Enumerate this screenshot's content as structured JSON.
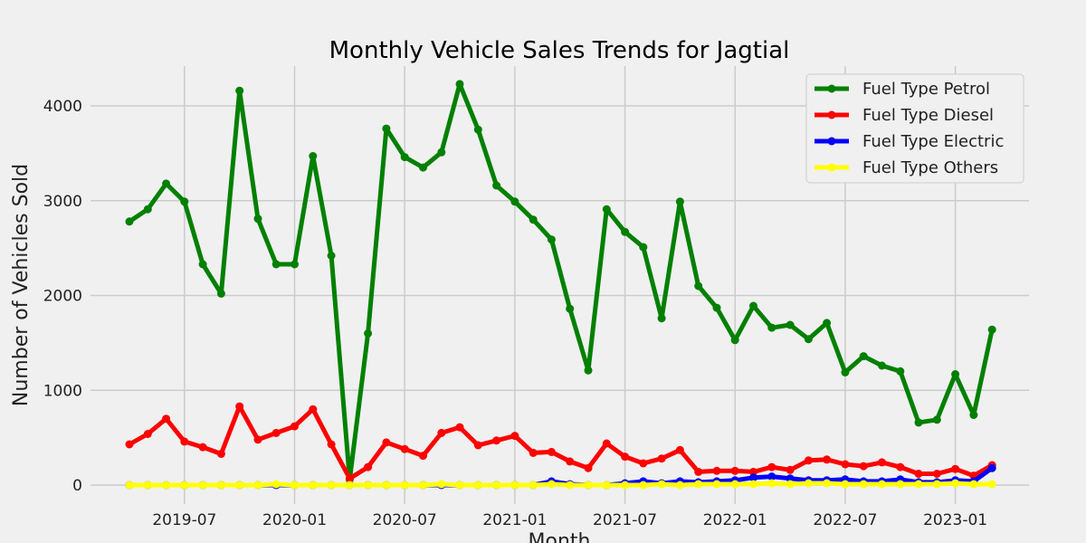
{
  "chart_data": {
    "type": "line",
    "title": "Monthly Vehicle Sales Trends for Jagtial",
    "xlabel": "Month",
    "ylabel": "Number of Vehicles Sold",
    "x_start": "2019-04",
    "x": [
      "2019-04",
      "2019-05",
      "2019-06",
      "2019-07",
      "2019-08",
      "2019-09",
      "2019-10",
      "2019-11",
      "2019-12",
      "2020-01",
      "2020-02",
      "2020-03",
      "2020-04",
      "2020-05",
      "2020-06",
      "2020-07",
      "2020-08",
      "2020-09",
      "2020-10",
      "2020-11",
      "2020-12",
      "2021-01",
      "2021-02",
      "2021-03",
      "2021-04",
      "2021-05",
      "2021-06",
      "2021-07",
      "2021-08",
      "2021-09",
      "2021-10",
      "2021-11",
      "2021-12",
      "2022-01",
      "2022-02",
      "2022-03",
      "2022-04",
      "2022-05",
      "2022-06",
      "2022-07",
      "2022-08",
      "2022-09",
      "2022-10",
      "2022-11",
      "2022-12",
      "2023-01",
      "2023-02",
      "2023-03"
    ],
    "x_ticks": [
      "2019-07",
      "2020-01",
      "2020-07",
      "2021-01",
      "2021-07",
      "2022-01",
      "2022-07",
      "2023-01"
    ],
    "y_ticks": [
      0,
      1000,
      2000,
      3000,
      4000
    ],
    "ylim": [
      -200,
      4420
    ],
    "grid": true,
    "legend_position": "top-right",
    "series": [
      {
        "name": "Fuel Type Petrol",
        "color": "#008000",
        "values": [
          2780,
          2910,
          3180,
          2990,
          2330,
          2020,
          4160,
          2810,
          2330,
          2330,
          3470,
          2420,
          60,
          1600,
          3760,
          3460,
          3350,
          3510,
          4230,
          3750,
          3160,
          2990,
          2800,
          2590,
          1860,
          1210,
          2910,
          2670,
          2510,
          1760,
          2990,
          2100,
          1870,
          1530,
          1890,
          1660,
          1690,
          1540,
          1710,
          1190,
          1360,
          1260,
          1200,
          660,
          690,
          1170,
          740,
          1640
        ]
      },
      {
        "name": "Fuel Type Diesel",
        "color": "#ff0000",
        "values": [
          430,
          540,
          700,
          460,
          400,
          330,
          830,
          480,
          550,
          620,
          800,
          430,
          70,
          190,
          450,
          380,
          310,
          550,
          610,
          420,
          470,
          520,
          340,
          350,
          250,
          180,
          440,
          300,
          230,
          280,
          370,
          140,
          150,
          150,
          140,
          190,
          160,
          260,
          270,
          220,
          200,
          240,
          190,
          120,
          120,
          170,
          100,
          210
        ]
      },
      {
        "name": "Fuel Type Electric",
        "color": "#0000ff",
        "values": [
          0,
          0,
          0,
          0,
          0,
          0,
          0,
          0,
          0,
          0,
          0,
          0,
          0,
          0,
          0,
          0,
          0,
          0,
          0,
          0,
          0,
          0,
          0,
          40,
          10,
          0,
          0,
          20,
          40,
          20,
          40,
          30,
          40,
          50,
          80,
          90,
          70,
          50,
          50,
          60,
          40,
          40,
          60,
          30,
          30,
          50,
          40,
          180
        ]
      },
      {
        "name": "Fuel Type Others",
        "color": "#ffff00",
        "values": [
          0,
          0,
          0,
          0,
          0,
          0,
          0,
          0,
          10,
          0,
          0,
          0,
          0,
          0,
          0,
          0,
          0,
          10,
          0,
          0,
          0,
          0,
          0,
          10,
          0,
          0,
          0,
          0,
          0,
          10,
          0,
          10,
          10,
          10,
          10,
          20,
          10,
          20,
          20,
          10,
          10,
          10,
          10,
          10,
          10,
          20,
          10,
          10
        ]
      }
    ]
  }
}
